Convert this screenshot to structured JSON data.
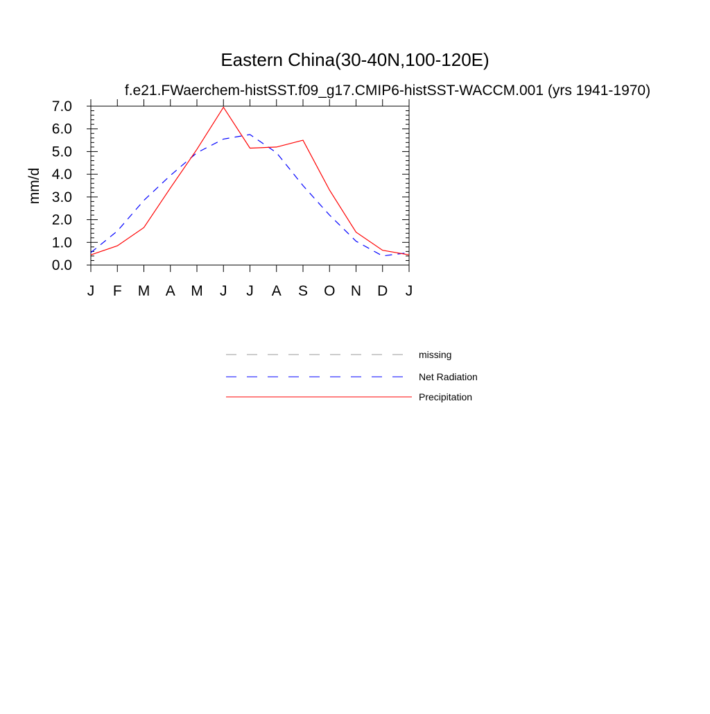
{
  "chart_data": {
    "type": "line",
    "title": "Eastern China(30-40N,100-120E)",
    "subtitle": "f.e21.FWaerchem-histSST.f09_g17.CMIP6-histSST-WACCM.001 (yrs 1941-1970)",
    "xlabel": "",
    "ylabel": "mm/d",
    "categories": [
      "J",
      "F",
      "M",
      "A",
      "M",
      "J",
      "J",
      "A",
      "S",
      "O",
      "N",
      "D",
      "J"
    ],
    "ylim": [
      0,
      7
    ],
    "yticks": [
      "0.0",
      "1.0",
      "2.0",
      "3.0",
      "4.0",
      "5.0",
      "6.0",
      "7.0"
    ],
    "grid": false,
    "legend_position": "bottom-center",
    "series": [
      {
        "name": "Net Radiation",
        "color": "#0000ff",
        "dash": "dashed",
        "values": [
          0.55,
          1.5,
          2.85,
          3.95,
          4.95,
          5.55,
          5.75,
          4.95,
          3.5,
          2.2,
          1.05,
          0.4,
          0.55
        ]
      },
      {
        "name": "Precipitation",
        "color": "#ff0000",
        "dash": "solid",
        "values": [
          0.45,
          0.85,
          1.65,
          3.4,
          5.1,
          6.95,
          5.15,
          5.2,
          5.5,
          3.3,
          1.45,
          0.65,
          0.45
        ]
      }
    ],
    "legend": [
      {
        "name": "missing",
        "color": "#999999",
        "dash": "dashed"
      },
      {
        "name": "Net Radiation",
        "color": "#0000ff",
        "dash": "dashed"
      },
      {
        "name": "Precipitation",
        "color": "#ff0000",
        "dash": "solid"
      }
    ]
  }
}
